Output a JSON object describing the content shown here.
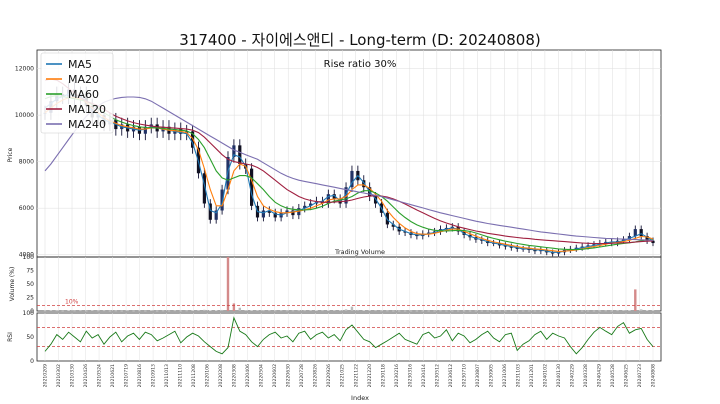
{
  "chart_data": [
    {
      "type": "line",
      "title": "317400 - 자이에스앤디 - Long-term (D: 20240808)",
      "ylabel": "Price",
      "annotation": "Rise ratio 30%",
      "ylim": [
        3900,
        12800
      ],
      "yticks": [
        4000,
        6000,
        8000,
        10000,
        12000
      ],
      "legend_position": "upper-left",
      "series": [
        {
          "name": "MA5",
          "color": "#1f77b4",
          "values": [
            10300,
            10500,
            10700,
            10800,
            10900,
            10850,
            10800,
            10600,
            10200,
            10000,
            9800,
            9700,
            9600,
            9500,
            9450,
            9400,
            9350,
            9400,
            9500,
            9450,
            9400,
            9350,
            9300,
            9250,
            9200,
            8800,
            8000,
            7000,
            5900,
            5800,
            6200,
            7600,
            8300,
            8200,
            7800,
            6600,
            5850,
            5800,
            5900,
            5750,
            5700,
            5800,
            5850,
            5900,
            6000,
            6100,
            6250,
            6300,
            6500,
            6550,
            6300,
            6600,
            7100,
            7400,
            7100,
            6700,
            6400,
            6000,
            5500,
            5300,
            5100,
            5000,
            4900,
            4850,
            4850,
            4900,
            4950,
            5050,
            5100,
            5150,
            5100,
            4900,
            4800,
            4700,
            4650,
            4550,
            4500,
            4450,
            4400,
            4350,
            4300,
            4250,
            4250,
            4200,
            4200,
            4150,
            4100,
            4100,
            4150,
            4200,
            4250,
            4300,
            4350,
            4400,
            4450,
            4500,
            4550,
            4550,
            4600,
            4700,
            4800,
            4900,
            4750,
            4600
          ]
        },
        {
          "name": "MA20",
          "color": "#ff7f0e",
          "values": [
            10100,
            10300,
            10500,
            10650,
            10750,
            10750,
            10700,
            10550,
            10300,
            10100,
            9900,
            9750,
            9650,
            9550,
            9500,
            9450,
            9400,
            9400,
            9450,
            9450,
            9400,
            9350,
            9330,
            9300,
            9250,
            9000,
            8500,
            7700,
            6800,
            6100,
            6100,
            6800,
            7600,
            7900,
            7800,
            7200,
            6500,
            6100,
            5950,
            5850,
            5800,
            5800,
            5830,
            5870,
            5930,
            6000,
            6100,
            6200,
            6350,
            6400,
            6400,
            6500,
            6800,
            7000,
            7000,
            6850,
            6600,
            6300,
            5900,
            5600,
            5350,
            5150,
            5000,
            4900,
            4880,
            4880,
            4920,
            4980,
            5050,
            5100,
            5100,
            5000,
            4900,
            4800,
            4700,
            4620,
            4550,
            4500,
            4450,
            4400,
            4350,
            4300,
            4280,
            4250,
            4230,
            4200,
            4170,
            4140,
            4150,
            4170,
            4200,
            4250,
            4300,
            4350,
            4400,
            4450,
            4500,
            4520,
            4560,
            4620,
            4700,
            4780,
            4760,
            4680
          ]
        },
        {
          "name": "MA60",
          "color": "#2ca02c",
          "values": [
            10700,
            10800,
            10850,
            10800,
            10750,
            10700,
            10650,
            10600,
            10450,
            10300,
            10100,
            9950,
            9800,
            9700,
            9620,
            9550,
            9500,
            9470,
            9460,
            9450,
            9430,
            9400,
            9380,
            9350,
            9320,
            9200,
            8950,
            8600,
            8100,
            7600,
            7300,
            7200,
            7300,
            7400,
            7400,
            7300,
            7050,
            6800,
            6500,
            6250,
            6100,
            6000,
            5950,
            5930,
            5920,
            5940,
            6000,
            6080,
            6200,
            6300,
            6350,
            6400,
            6500,
            6650,
            6750,
            6750,
            6650,
            6500,
            6300,
            6050,
            5800,
            5600,
            5420,
            5280,
            5180,
            5100,
            5050,
            5030,
            5020,
            5030,
            5050,
            5040,
            5000,
            4930,
            4850,
            4770,
            4700,
            4640,
            4580,
            4530,
            4480,
            4440,
            4400,
            4370,
            4340,
            4310,
            4280,
            4250,
            4230,
            4220,
            4220,
            4230,
            4260,
            4290,
            4330,
            4370,
            4410,
            4450,
            4480,
            4510,
            4550,
            4600,
            4630,
            4640
          ]
        },
        {
          "name": "MA120",
          "color": "#a02040",
          "values": [
            11500,
            11550,
            11500,
            11350,
            11150,
            10950,
            10750,
            10600,
            10500,
            10400,
            10250,
            10100,
            9950,
            9850,
            9750,
            9680,
            9620,
            9570,
            9530,
            9500,
            9480,
            9460,
            9440,
            9420,
            9400,
            9350,
            9250,
            9050,
            8800,
            8550,
            8300,
            8100,
            8000,
            7950,
            7900,
            7850,
            7750,
            7600,
            7400,
            7200,
            7000,
            6800,
            6650,
            6500,
            6400,
            6330,
            6280,
            6250,
            6250,
            6260,
            6280,
            6300,
            6350,
            6420,
            6480,
            6520,
            6530,
            6520,
            6480,
            6400,
            6300,
            6180,
            6050,
            5920,
            5800,
            5680,
            5560,
            5450,
            5360,
            5280,
            5200,
            5140,
            5080,
            5020,
            4970,
            4920,
            4880,
            4840,
            4800,
            4770,
            4740,
            4710,
            4690,
            4660,
            4640,
            4620,
            4600,
            4580,
            4560,
            4540,
            4520,
            4500,
            4490,
            4480,
            4480,
            4480,
            4490,
            4500,
            4510,
            4520,
            4540,
            4560,
            4580,
            4590
          ]
        },
        {
          "name": "MA240",
          "color": "#7b6fb0",
          "values": [
            7600,
            7900,
            8250,
            8600,
            8950,
            9300,
            9650,
            9950,
            10200,
            10400,
            10550,
            10650,
            10720,
            10760,
            10780,
            10780,
            10760,
            10700,
            10600,
            10450,
            10300,
            10150,
            10000,
            9850,
            9700,
            9550,
            9400,
            9250,
            9100,
            8950,
            8800,
            8650,
            8500,
            8400,
            8300,
            8200,
            8100,
            7950,
            7800,
            7650,
            7500,
            7380,
            7280,
            7200,
            7150,
            7100,
            7050,
            7000,
            6950,
            6900,
            6850,
            6800,
            6750,
            6700,
            6650,
            6600,
            6550,
            6500,
            6430,
            6360,
            6290,
            6220,
            6150,
            6080,
            6010,
            5940,
            5870,
            5800,
            5740,
            5680,
            5620,
            5560,
            5500,
            5440,
            5390,
            5340,
            5300,
            5260,
            5220,
            5180,
            5140,
            5100,
            5060,
            5020,
            4980,
            4950,
            4920,
            4890,
            4860,
            4830,
            4800,
            4780,
            4760,
            4740,
            4720,
            4700,
            4690,
            4680,
            4670,
            4660,
            4650,
            4640,
            4630,
            4620
          ]
        }
      ],
      "price_close": [
        10100,
        10600,
        10900,
        10800,
        11100,
        10700,
        10900,
        10400,
        9900,
        10000,
        9600,
        9800,
        9400,
        9600,
        9300,
        9500,
        9200,
        9500,
        9600,
        9300,
        9500,
        9200,
        9400,
        9200,
        9300,
        8600,
        7500,
        6200,
        5500,
        5900,
        6800,
        8200,
        8700,
        7900,
        7700,
        6100,
        5600,
        5900,
        5800,
        5600,
        5800,
        5900,
        5700,
        6000,
        6100,
        6200,
        6300,
        6200,
        6600,
        6400,
        6200,
        6900,
        7600,
        7200,
        6900,
        6500,
        6200,
        5800,
        5300,
        5200,
        5000,
        4950,
        4850,
        4800,
        4900,
        4950,
        5000,
        5100,
        5150,
        5200,
        5000,
        4850,
        4750,
        4650,
        4600,
        4500,
        4500,
        4400,
        4350,
        4300,
        4250,
        4250,
        4200,
        4150,
        4200,
        4100,
        4050,
        4100,
        4200,
        4250,
        4300,
        4350,
        4400,
        4450,
        4500,
        4550,
        4500,
        4600,
        4650,
        4800,
        5100,
        4800,
        4600,
        4500
      ]
    },
    {
      "type": "bar",
      "title": "Trading Volume",
      "ylabel": "Volume (%)",
      "yticks": [
        0,
        25,
        50,
        75,
        100
      ],
      "ylim": [
        0,
        100
      ],
      "threshold_label": "10%",
      "threshold": 10,
      "values": [
        0.4,
        0.6,
        0.5,
        0.3,
        0.8,
        0.4,
        0.5,
        0.3,
        0.6,
        0.4,
        0.5,
        0.3,
        0.4,
        0.3,
        0.5,
        0.3,
        0.4,
        0.3,
        0.6,
        0.3,
        0.4,
        0.3,
        0.5,
        0.3,
        0.4,
        0.7,
        1.5,
        2.2,
        1.0,
        0.8,
        2.0,
        100,
        14.0,
        6.0,
        1.5,
        0.8,
        0.6,
        0.5,
        0.5,
        0.4,
        0.5,
        0.4,
        0.4,
        0.5,
        0.5,
        0.6,
        0.8,
        0.5,
        1.0,
        0.6,
        0.6,
        3.0,
        8.0,
        2.0,
        0.8,
        0.6,
        0.5,
        0.4,
        0.4,
        0.3,
        0.3,
        0.3,
        0.3,
        0.3,
        0.3,
        0.3,
        0.3,
        0.4,
        0.3,
        0.3,
        0.3,
        0.3,
        0.3,
        0.3,
        0.3,
        0.3,
        0.3,
        0.3,
        0.3,
        0.3,
        0.3,
        0.3,
        0.3,
        0.3,
        0.3,
        0.3,
        0.3,
        0.3,
        0.3,
        0.3,
        0.3,
        0.3,
        0.3,
        0.3,
        0.3,
        0.4,
        0.3,
        0.5,
        0.6,
        1.2,
        40,
        3.0,
        1.2,
        0.6
      ]
    },
    {
      "type": "line",
      "ylabel": "RSI",
      "xlabel": "Index",
      "yticks": [
        0,
        50,
        100
      ],
      "ylim": [
        0,
        100
      ],
      "hlines": [
        30,
        70
      ],
      "series": [
        {
          "name": "RSI",
          "color": "#1a7a1a",
          "values": [
            20,
            35,
            55,
            45,
            60,
            50,
            40,
            62,
            48,
            55,
            35,
            50,
            60,
            40,
            52,
            58,
            45,
            60,
            55,
            42,
            48,
            55,
            62,
            38,
            50,
            58,
            52,
            40,
            30,
            20,
            15,
            28,
            90,
            62,
            55,
            40,
            30,
            45,
            55,
            60,
            48,
            52,
            40,
            58,
            62,
            45,
            55,
            60,
            48,
            55,
            42,
            65,
            75,
            60,
            45,
            40,
            28,
            35,
            42,
            50,
            58,
            45,
            40,
            35,
            55,
            60,
            48,
            52,
            65,
            42,
            58,
            52,
            38,
            45,
            55,
            62,
            48,
            40,
            55,
            58,
            22,
            35,
            42,
            55,
            62,
            45,
            58,
            52,
            48,
            30,
            15,
            28,
            45,
            60,
            70,
            62,
            55,
            72,
            80,
            58,
            65,
            68,
            45,
            30
          ]
        }
      ]
    }
  ],
  "date_labels": [
    "20210209",
    "20210302",
    "20210330",
    "20210426",
    "20210524",
    "20210621",
    "20210719",
    "20210816",
    "20210913",
    "20211013",
    "20211110",
    "20211208",
    "20220106",
    "20220208",
    "20220308",
    "20220406",
    "20220504",
    "20220602",
    "20220630",
    "20220728",
    "20220826",
    "20220926",
    "20221025",
    "20221122",
    "20221220",
    "20230118",
    "20230216",
    "20230316",
    "20230414",
    "20230512",
    "20230612",
    "20230710",
    "20230807",
    "20230905",
    "20231006",
    "20231103",
    "20231201",
    "20240102",
    "20240130",
    "20240229",
    "20240328",
    "20240429",
    "20240528",
    "20240625",
    "20240723",
    "20240808"
  ]
}
